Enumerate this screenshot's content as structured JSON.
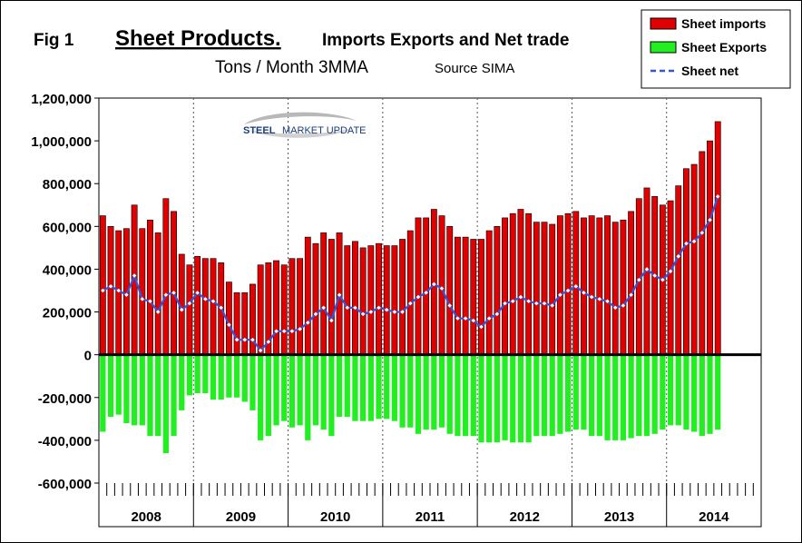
{
  "header": {
    "fig_label": "Fig 1",
    "title_main": "Sheet Products.",
    "title_rest": "Imports Exports and Net trade",
    "subtitle": "Tons / Month 3MMA",
    "source": "Source SIMA"
  },
  "logo": {
    "text_steel": "STEEL",
    "text_rest": "MARKET UPDATE"
  },
  "colors": {
    "imports": "#e00000",
    "exports": "#22ee22",
    "net": "#3355dd",
    "net_marker": "#ffffff"
  },
  "chart_data": {
    "type": "bar",
    "title": "Sheet Products. Imports Exports and Net trade",
    "subtitle": "Tons / Month 3MMA",
    "source": "Source SIMA",
    "x_labels": [
      "2008",
      "2009",
      "2010",
      "2011",
      "2012",
      "2013",
      "2014"
    ],
    "x_start": "2008-01",
    "x_end": "2014-06",
    "y_ticks": [
      -600000,
      -400000,
      -200000,
      0,
      200000,
      400000,
      600000,
      800000,
      1000000,
      1200000
    ],
    "y_tick_labels": [
      "-600,000",
      "-400,000",
      "-200,000",
      "0",
      "200,000",
      "400,000",
      "600,000",
      "800,000",
      "1,000,000",
      "1,200,000"
    ],
    "ylim": [
      -600000,
      1200000
    ],
    "grid": "vertical at year boundaries",
    "legend_position": "top-right",
    "series": [
      {
        "name": "Sheet imports",
        "kind": "bar",
        "values": [
          650000,
          600000,
          580000,
          590000,
          700000,
          590000,
          630000,
          570000,
          730000,
          670000,
          470000,
          420000,
          460000,
          450000,
          450000,
          430000,
          340000,
          290000,
          290000,
          330000,
          420000,
          430000,
          440000,
          420000,
          450000,
          450000,
          550000,
          520000,
          570000,
          540000,
          570000,
          510000,
          530000,
          500000,
          510000,
          520000,
          510000,
          510000,
          540000,
          580000,
          640000,
          640000,
          680000,
          650000,
          600000,
          550000,
          550000,
          540000,
          540000,
          580000,
          600000,
          640000,
          660000,
          680000,
          660000,
          620000,
          620000,
          610000,
          650000,
          660000,
          670000,
          640000,
          650000,
          640000,
          650000,
          620000,
          630000,
          670000,
          730000,
          780000,
          740000,
          700000,
          720000,
          790000,
          870000,
          890000,
          950000,
          1000000,
          1090000
        ]
      },
      {
        "name": "Sheet Exports",
        "kind": "bar",
        "values": [
          -360000,
          -290000,
          -280000,
          -320000,
          -330000,
          -330000,
          -380000,
          -380000,
          -460000,
          -380000,
          -260000,
          -190000,
          -180000,
          -180000,
          -210000,
          -210000,
          -200000,
          -200000,
          -220000,
          -260000,
          -400000,
          -380000,
          -330000,
          -310000,
          -340000,
          -330000,
          -400000,
          -330000,
          -350000,
          -380000,
          -290000,
          -290000,
          -310000,
          -310000,
          -310000,
          -300000,
          -300000,
          -310000,
          -340000,
          -340000,
          -370000,
          -350000,
          -350000,
          -340000,
          -370000,
          -380000,
          -380000,
          -380000,
          -410000,
          -410000,
          -410000,
          -400000,
          -410000,
          -410000,
          -410000,
          -380000,
          -380000,
          -380000,
          -370000,
          -360000,
          -350000,
          -350000,
          -380000,
          -380000,
          -400000,
          -400000,
          -400000,
          -390000,
          -380000,
          -380000,
          -370000,
          -350000,
          -330000,
          -330000,
          -350000,
          -360000,
          -380000,
          -370000,
          -350000
        ]
      },
      {
        "name": "Sheet net",
        "kind": "line",
        "values": [
          300000,
          320000,
          300000,
          280000,
          370000,
          260000,
          250000,
          200000,
          280000,
          290000,
          210000,
          240000,
          290000,
          260000,
          250000,
          220000,
          140000,
          70000,
          70000,
          70000,
          20000,
          60000,
          110000,
          110000,
          110000,
          120000,
          150000,
          190000,
          220000,
          160000,
          280000,
          220000,
          220000,
          190000,
          200000,
          220000,
          210000,
          200000,
          200000,
          240000,
          270000,
          290000,
          330000,
          310000,
          230000,
          170000,
          170000,
          160000,
          130000,
          170000,
          190000,
          240000,
          250000,
          270000,
          250000,
          240000,
          240000,
          230000,
          280000,
          300000,
          320000,
          290000,
          270000,
          260000,
          250000,
          220000,
          230000,
          280000,
          350000,
          400000,
          370000,
          350000,
          390000,
          460000,
          520000,
          530000,
          570000,
          630000,
          740000
        ]
      }
    ]
  }
}
